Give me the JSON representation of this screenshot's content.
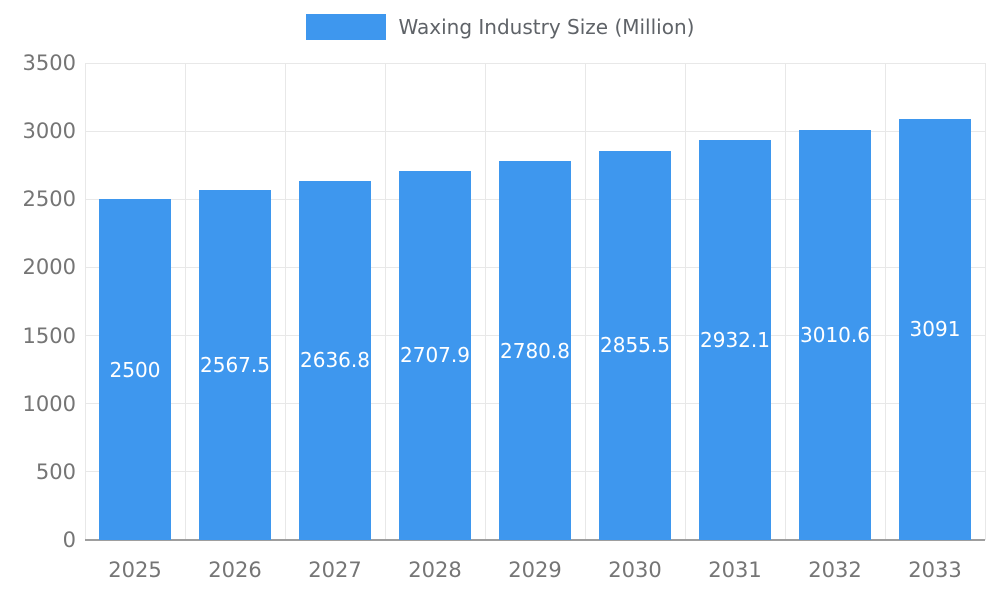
{
  "legend": {
    "label": "Waxing Industry Size (Million)"
  },
  "colors": {
    "bar": "#3e97ee",
    "bar_label": "#ffffff",
    "grid": "#e8e8e8",
    "baseline": "#9e9e9e",
    "axis_text": "#757575",
    "legend_text": "#5f6368"
  },
  "chart_data": {
    "type": "bar",
    "title": "Waxing Industry Size (Million)",
    "categories": [
      "2025",
      "2026",
      "2027",
      "2028",
      "2029",
      "2030",
      "2031",
      "2032",
      "2033"
    ],
    "values": [
      2500,
      2567.5,
      2636.8,
      2707.9,
      2780.8,
      2855.5,
      2932.1,
      3010.6,
      3091
    ],
    "data_labels": [
      "2500",
      "2567.5",
      "2636.8",
      "2707.9",
      "2780.8",
      "2855.5",
      "2932.1",
      "3010.6",
      "3091"
    ],
    "xlabel": "",
    "ylabel": "",
    "ylim": [
      0,
      3500
    ],
    "yticks": [
      0,
      500,
      1000,
      1500,
      2000,
      2500,
      3000,
      3500
    ],
    "grid": true,
    "legend_position": "top",
    "data_labels_visible": true
  }
}
